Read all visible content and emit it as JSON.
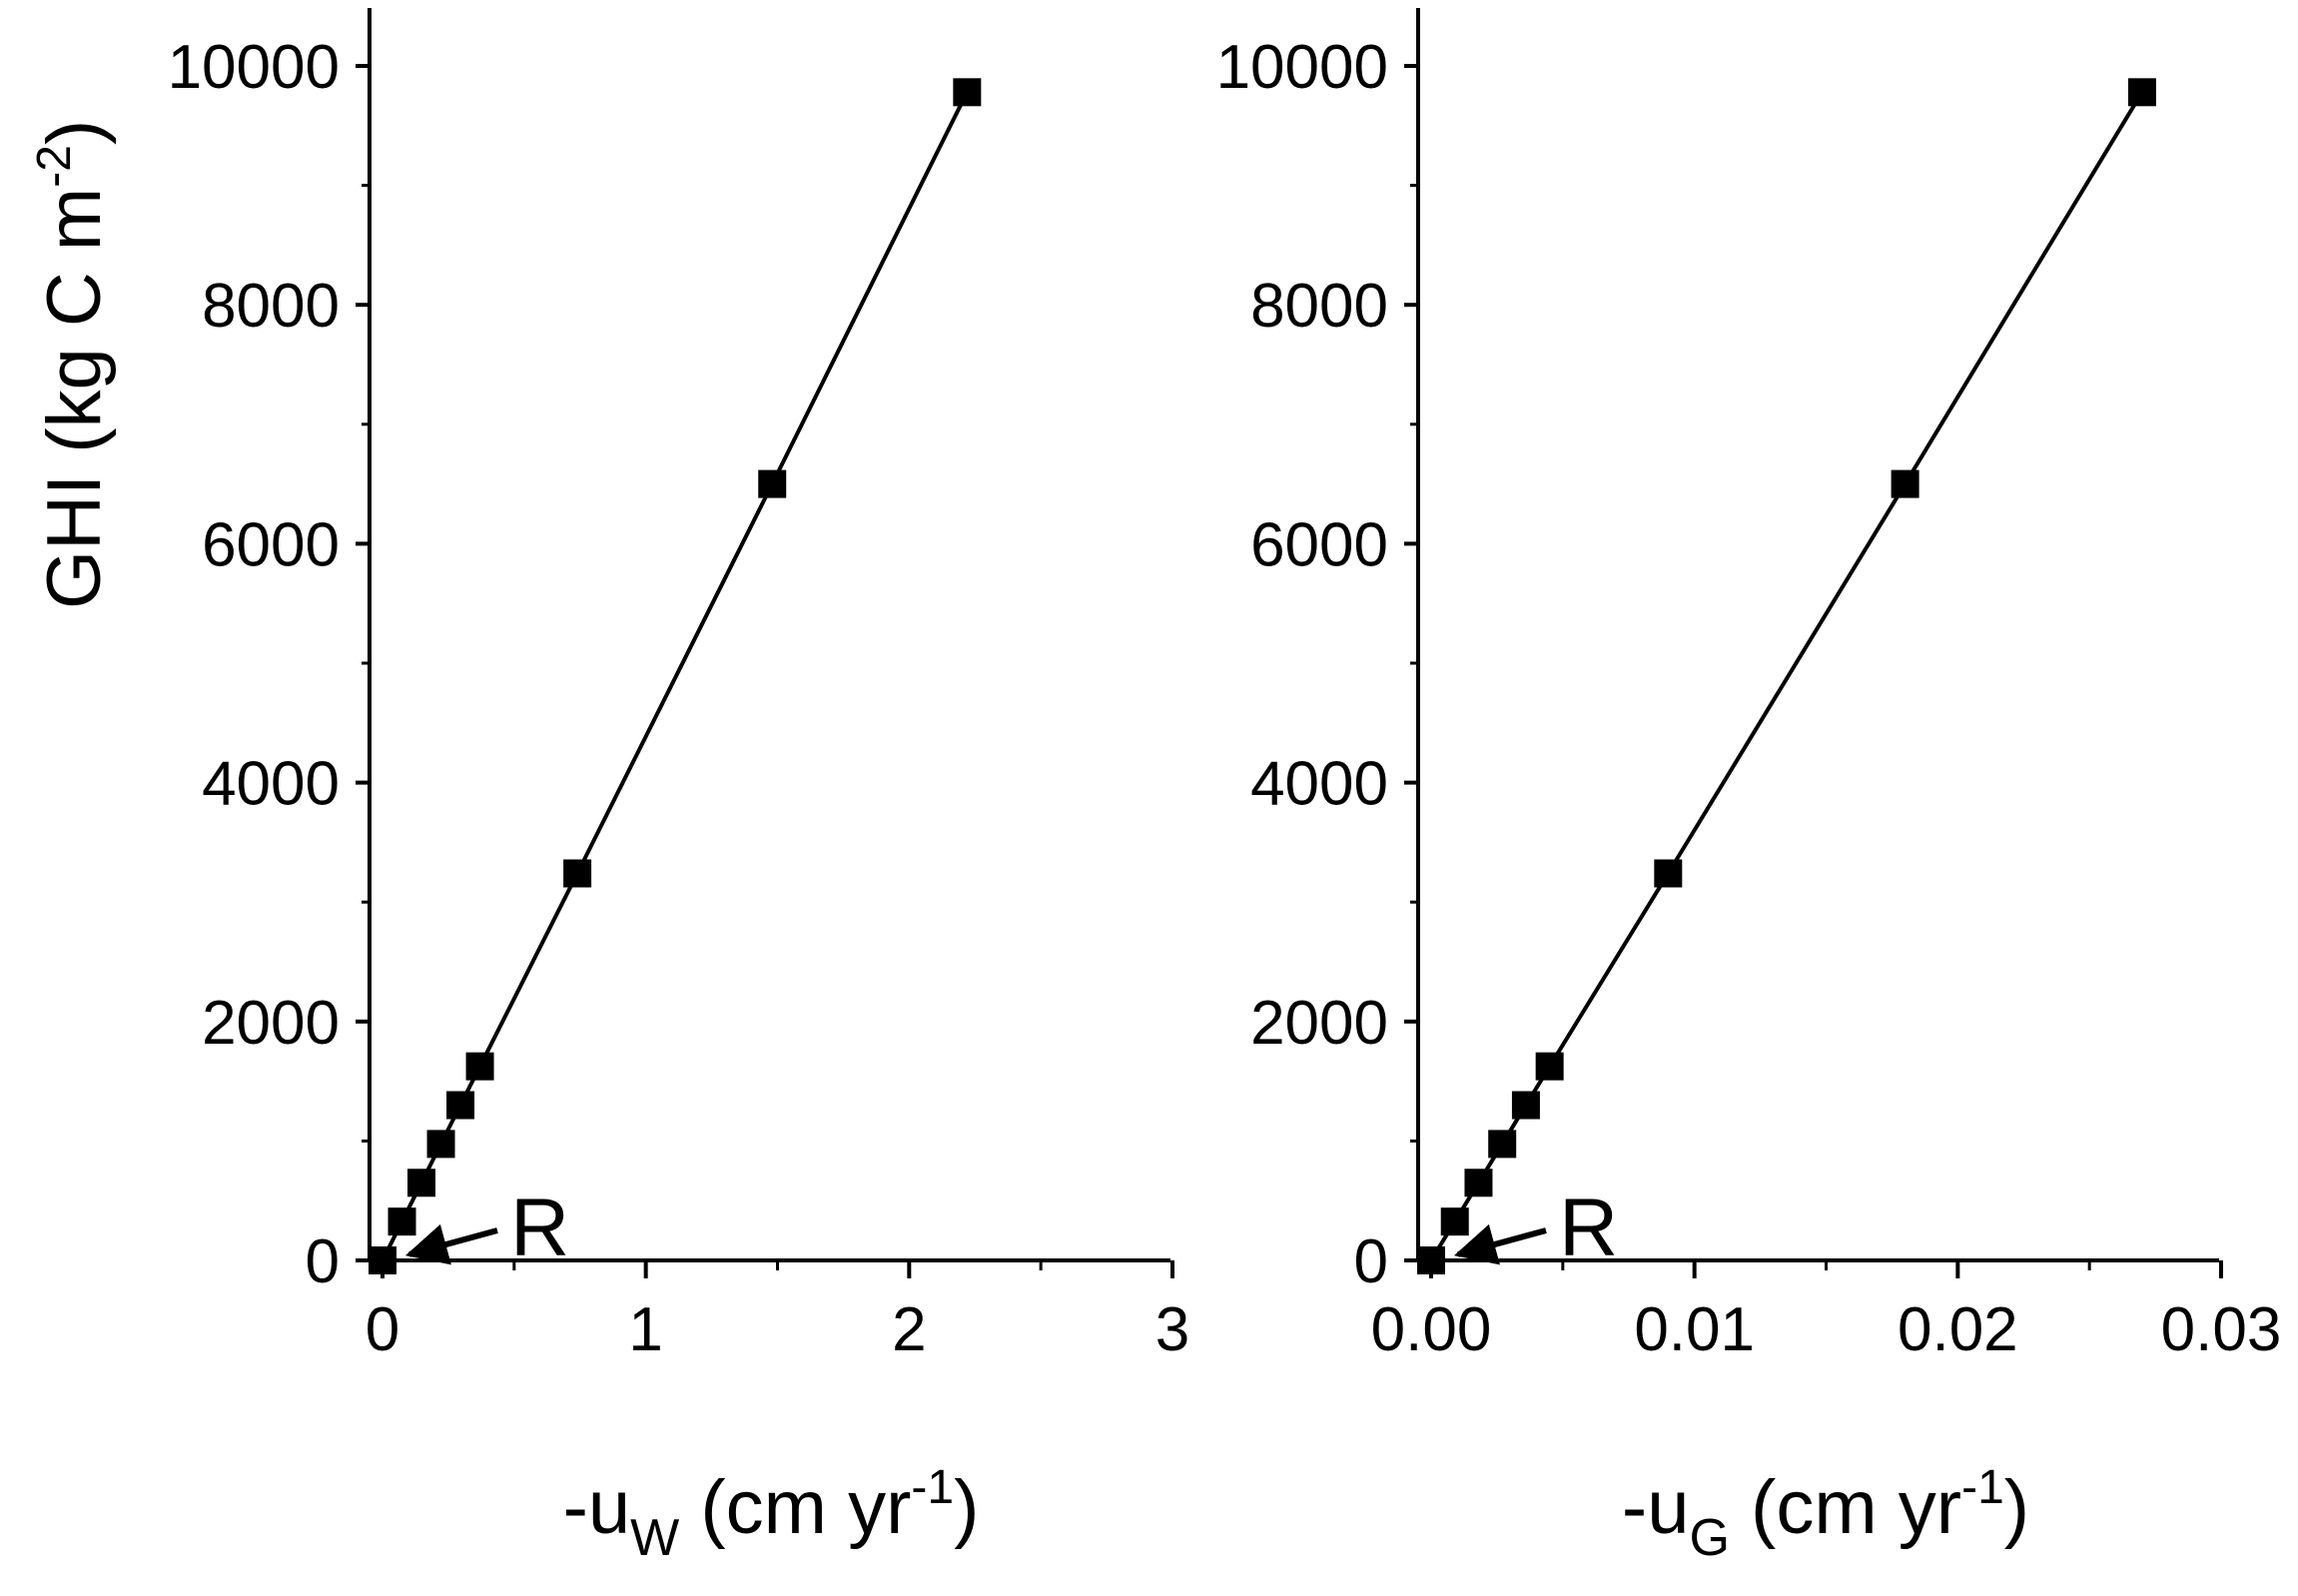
{
  "chart_data": [
    {
      "type": "line",
      "markers": "filled-square",
      "color": "#000000",
      "xlabel": {
        "prefix": "-u",
        "sub": "W",
        "mid": " (cm yr",
        "sup": "-1",
        "suffix": ")"
      },
      "ylabel": {
        "prefix": "GHI (kg C m",
        "sup": "-2",
        "suffix": ")"
      },
      "xlim": [
        0,
        3
      ],
      "ylim": [
        0,
        10000
      ],
      "xticks": [
        0,
        1,
        2,
        3
      ],
      "xtick_labels": [
        "0",
        "1",
        "2",
        "3"
      ],
      "x_minor_ticks": [
        0.5,
        1.5,
        2.5
      ],
      "yticks": [
        0,
        2000,
        4000,
        6000,
        8000,
        10000
      ],
      "ytick_labels": [
        "0",
        "2000",
        "4000",
        "6000",
        "8000",
        "10000"
      ],
      "y_minor_ticks": [
        1000,
        3000,
        5000,
        7000,
        9000
      ],
      "grid": false,
      "points": [
        {
          "x": 0.0,
          "y": 0
        },
        {
          "x": 0.074,
          "y": 325
        },
        {
          "x": 0.148,
          "y": 650
        },
        {
          "x": 0.222,
          "y": 975
        },
        {
          "x": 0.296,
          "y": 1300
        },
        {
          "x": 0.37,
          "y": 1625
        },
        {
          "x": 0.74,
          "y": 3240
        },
        {
          "x": 1.48,
          "y": 6500
        },
        {
          "x": 2.22,
          "y": 9780
        }
      ],
      "annotation": {
        "text": "R",
        "target": {
          "x": 0.0,
          "y": 0
        }
      }
    },
    {
      "type": "line",
      "markers": "filled-square",
      "color": "#000000",
      "xlabel": {
        "prefix": "-u",
        "sub": "G",
        "mid": " (cm yr",
        "sup": "-1",
        "suffix": ")"
      },
      "xlim": [
        0,
        0.03
      ],
      "ylim": [
        0,
        10000
      ],
      "xticks": [
        0,
        0.01,
        0.02,
        0.03
      ],
      "xtick_labels": [
        "0.00",
        "0.01",
        "0.02",
        "0.03"
      ],
      "x_minor_ticks": [
        0.005,
        0.015,
        0.025
      ],
      "yticks": [
        0,
        2000,
        4000,
        6000,
        8000,
        10000
      ],
      "ytick_labels": [
        "0",
        "2000",
        "4000",
        "6000",
        "8000",
        "10000"
      ],
      "y_minor_ticks": [
        1000,
        3000,
        5000,
        7000,
        9000
      ],
      "grid": false,
      "points": [
        {
          "x": 0.0,
          "y": 0
        },
        {
          "x": 0.0009,
          "y": 325
        },
        {
          "x": 0.0018,
          "y": 650
        },
        {
          "x": 0.0027,
          "y": 975
        },
        {
          "x": 0.0036,
          "y": 1300
        },
        {
          "x": 0.0045,
          "y": 1625
        },
        {
          "x": 0.009,
          "y": 3240
        },
        {
          "x": 0.018,
          "y": 6500
        },
        {
          "x": 0.027,
          "y": 9780
        }
      ],
      "annotation": {
        "text": "R",
        "target": {
          "x": 0.0,
          "y": 0
        }
      }
    }
  ]
}
